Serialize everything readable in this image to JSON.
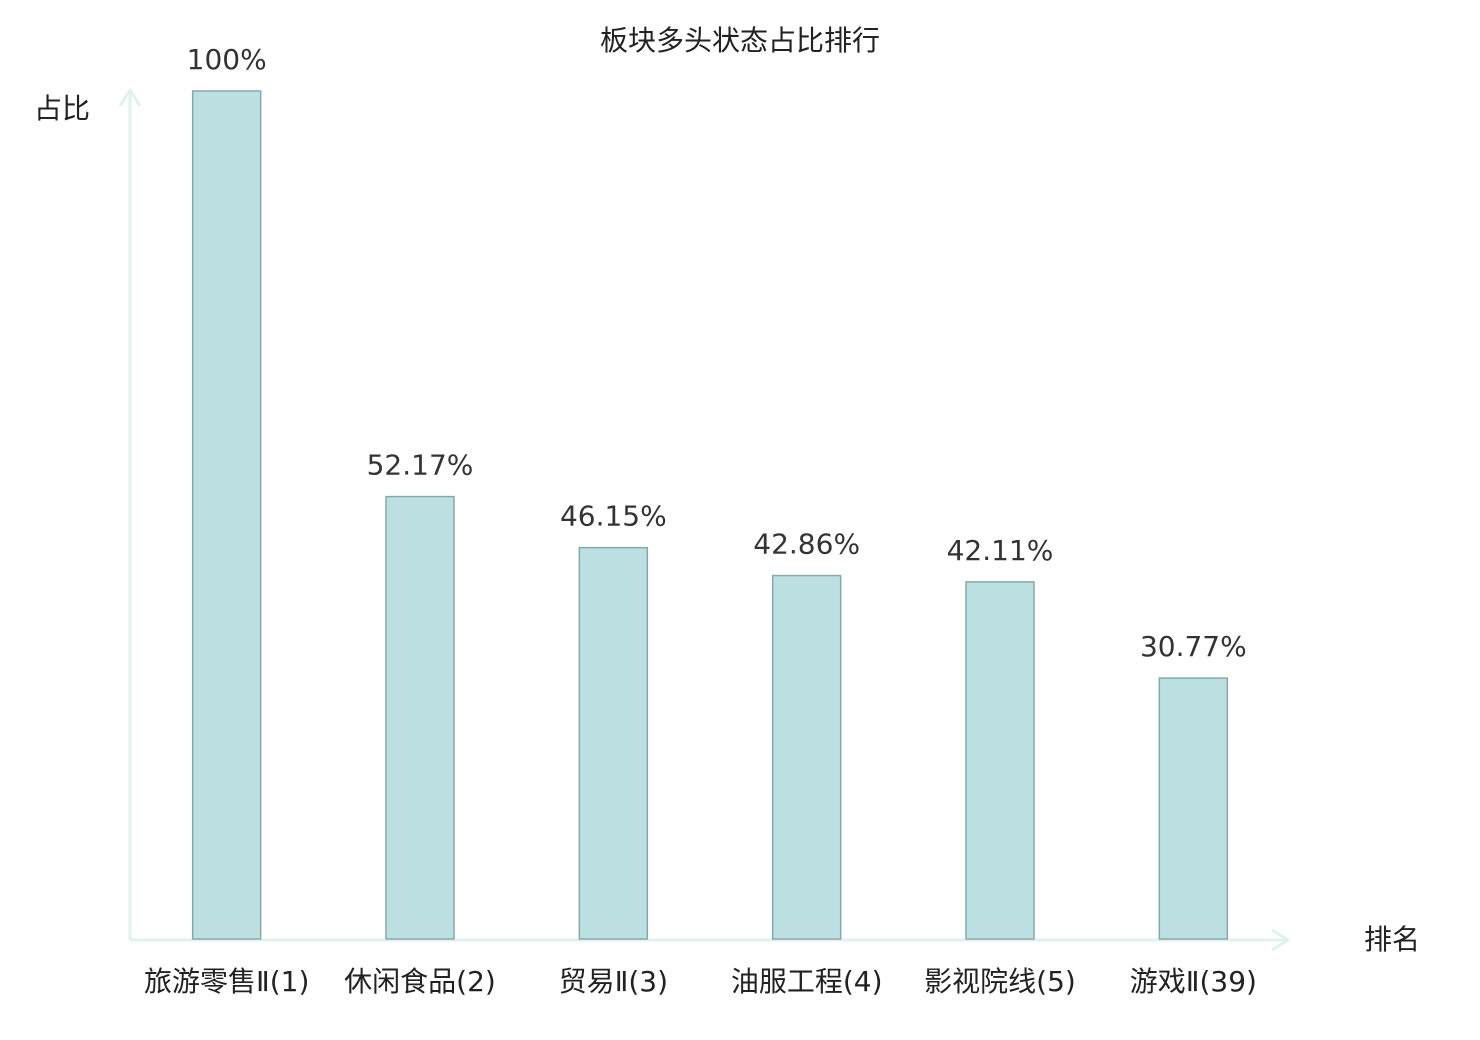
{
  "chart_data": {
    "type": "bar",
    "title": "板块多头状态占比排行",
    "y_label": "占比",
    "x_label": "排名",
    "categories": [
      "旅游零售Ⅱ(1)",
      "休闲食品(2)",
      "贸易Ⅱ(3)",
      "油服工程(4)",
      "影视院线(5)",
      "游戏Ⅱ(39)"
    ],
    "category_colors": [
      "#222222",
      "#222222",
      "#222222",
      "#222222",
      "#222222",
      "#d40000"
    ],
    "values": [
      100,
      52.17,
      46.15,
      42.86,
      42.11,
      30.77
    ],
    "value_labels": [
      "100%",
      "52.17%",
      "46.15%",
      "42.86%",
      "42.11%",
      "30.77%"
    ],
    "color": "#bde0e2",
    "ylim": [
      0,
      100
    ]
  }
}
